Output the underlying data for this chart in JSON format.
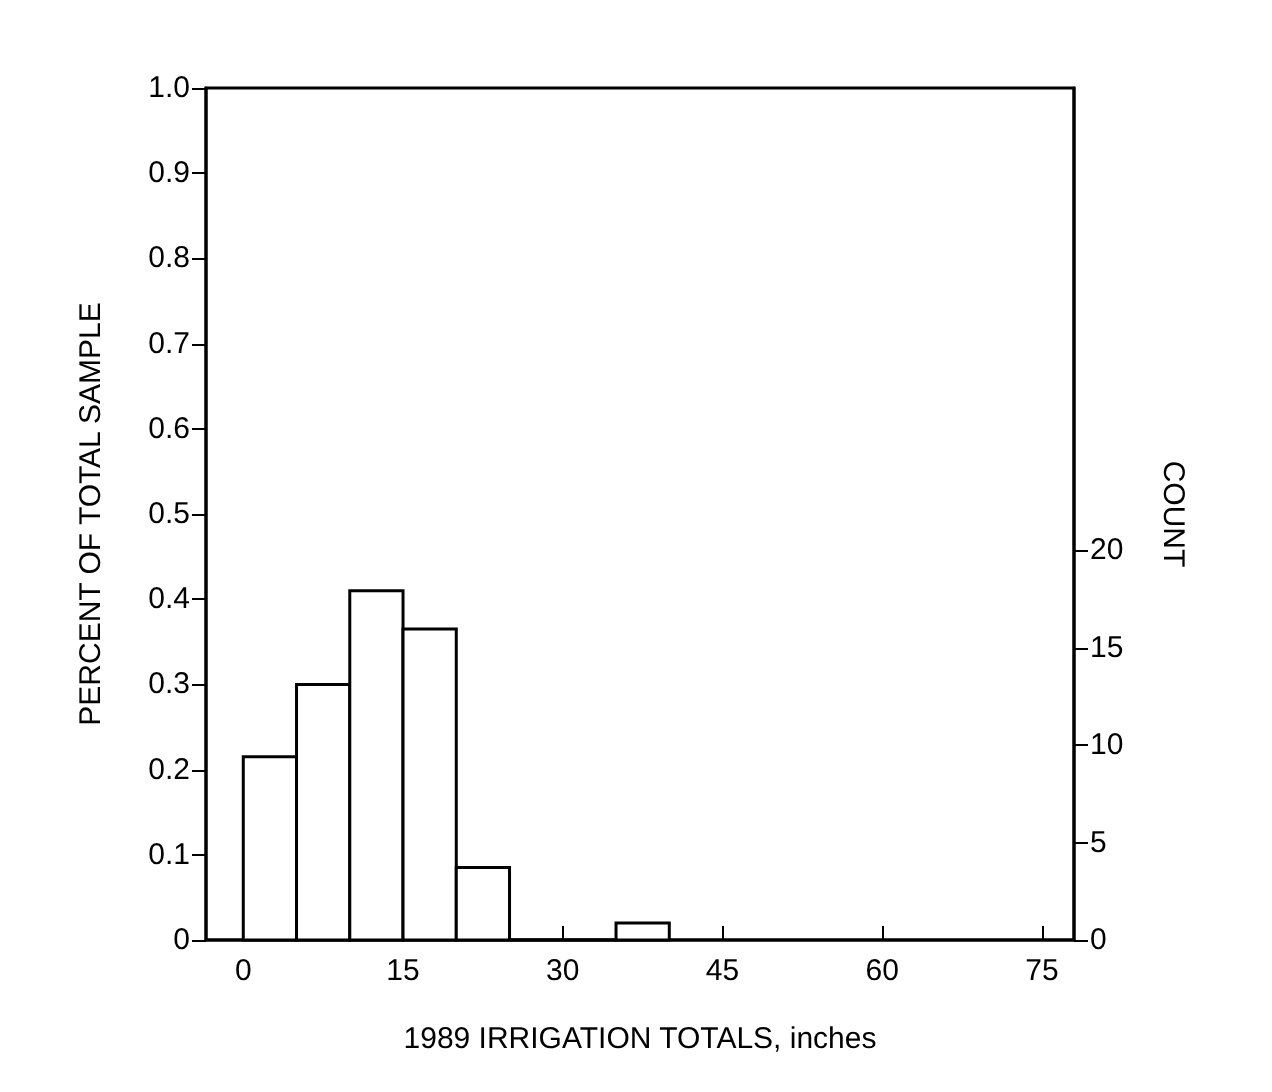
{
  "chart_data": {
    "type": "histogram",
    "xlabel": "1989 IRRIGATION TOTALS, inches",
    "ylabel": "PERCENT OF TOTAL SAMPLE",
    "y2label": "COUNT",
    "bins": [
      0,
      5,
      10,
      15,
      20,
      25,
      30,
      35,
      40
    ],
    "values": [
      0.215,
      0.3,
      0.41,
      0.365,
      0.085,
      0,
      0,
      0.02
    ],
    "color": "#ffffff",
    "xlim": [
      -3.5,
      78
    ],
    "xticks": [
      0,
      15,
      30,
      45,
      60,
      75
    ],
    "ylim": [
      0,
      1
    ],
    "yticks": [
      {
        "value": 0,
        "label": "0"
      },
      0.1,
      0.2,
      0.3,
      0.4,
      0.5,
      0.6,
      0.7,
      0.8,
      0.9,
      {
        "value": 1,
        "label": "1.0"
      }
    ],
    "y2lim": [
      0,
      43.7
    ],
    "y2ticks": [
      0,
      5,
      10,
      15,
      20
    ],
    "grid": false
  }
}
